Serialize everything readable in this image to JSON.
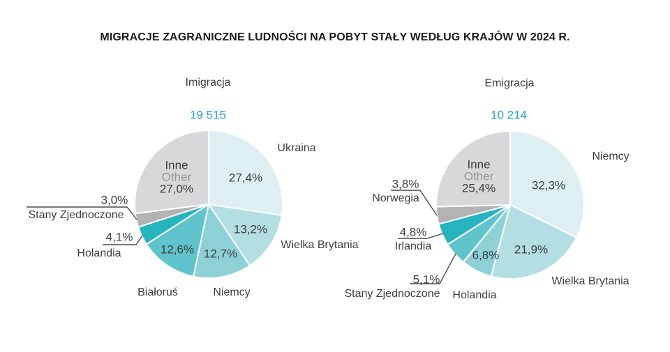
{
  "page_title": "MIGRACJE ZAGRANICZNE LUDNOŚCI NA POBYT STAŁY WEDŁUG KRAJÓW W 2024 R.",
  "accent_color": "#1fa5c4",
  "text_color": "#3d3d3d",
  "chart_data": [
    {
      "type": "pie",
      "title": "Imigracja",
      "total": "19 515",
      "start_angle_deg": 0,
      "direction": "clockwise",
      "legend_position": "none",
      "slices": [
        {
          "label": "Ukraina",
          "pct": "27,4%",
          "value": 27.4,
          "color": "#deeff1"
        },
        {
          "label": "Wielka Brytania",
          "pct": "13,2%",
          "value": 13.2,
          "color": "#b3dfe3"
        },
        {
          "label": "Niemcy",
          "pct": "12,7%",
          "value": 12.7,
          "color": "#8dd1d7"
        },
        {
          "label": "Białoruś",
          "pct": "12,6%",
          "value": 12.6,
          "color": "#5fc4cb"
        },
        {
          "label": "Holandia",
          "pct": "4,1%",
          "value": 4.1,
          "color": "#26b5bf"
        },
        {
          "label": "Stany Zjednoczone",
          "pct": "3,0%",
          "value": 3.0,
          "color": "#b3b3b5"
        },
        {
          "label": "Inne",
          "label_en": "Other",
          "pct": "27,0%",
          "value": 27.0,
          "color": "#d8d8da"
        }
      ]
    },
    {
      "type": "pie",
      "title": "Emigracja",
      "total": "10 214",
      "start_angle_deg": 0,
      "direction": "clockwise",
      "legend_position": "none",
      "slices": [
        {
          "label": "Niemcy",
          "pct": "32,3%",
          "value": 32.3,
          "color": "#deeff1"
        },
        {
          "label": "Wielka Brytania",
          "pct": "21,9%",
          "value": 21.9,
          "color": "#b3dfe3"
        },
        {
          "label": "Holandia",
          "pct": "6,8%",
          "value": 6.8,
          "color": "#8dd1d7"
        },
        {
          "label": "Stany Zjednoczone",
          "pct": "5,1%",
          "value": 5.1,
          "color": "#5fc4cb"
        },
        {
          "label": "Irlandia",
          "pct": "4,8%",
          "value": 4.8,
          "color": "#26b5bf"
        },
        {
          "label": "Norwegia",
          "pct": "3,8%",
          "value": 3.8,
          "color": "#b3b3b5"
        },
        {
          "label": "Inne",
          "label_en": "Other",
          "pct": "25,4%",
          "value": 25.4,
          "color": "#d8d8da"
        }
      ]
    }
  ]
}
